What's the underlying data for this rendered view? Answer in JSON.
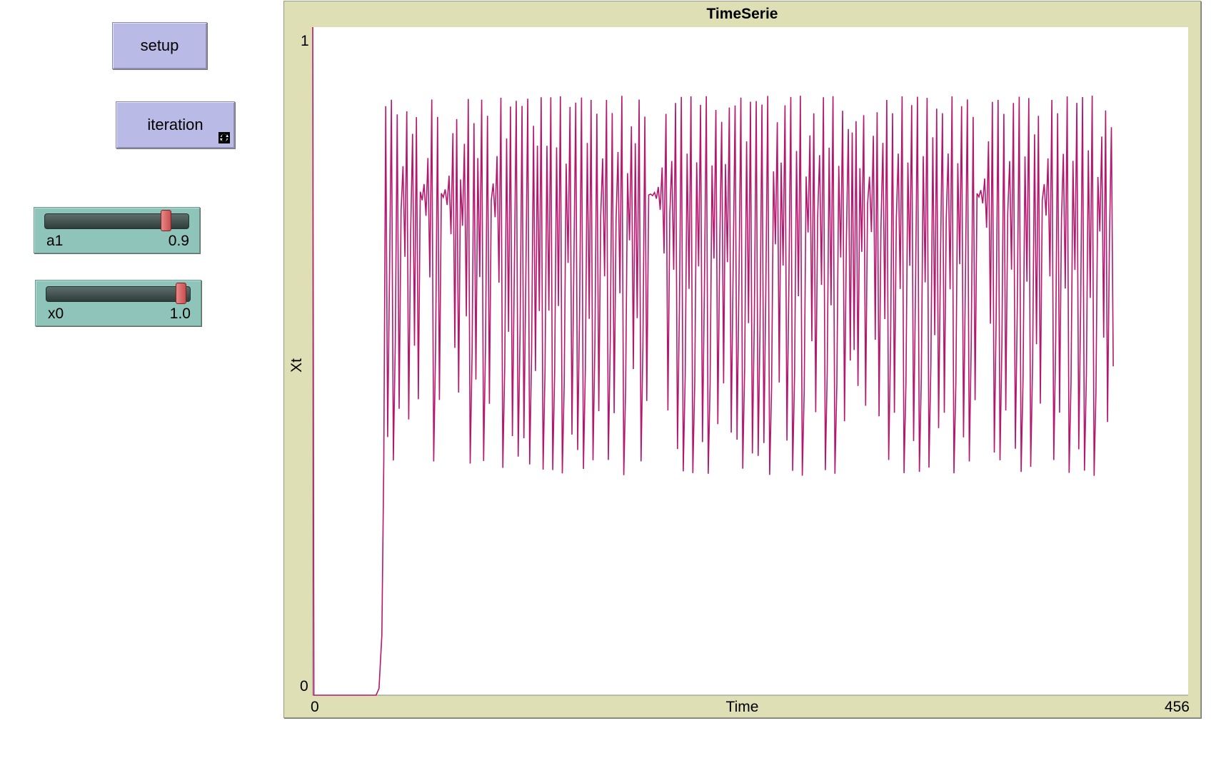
{
  "buttons": {
    "setup_label": "setup",
    "iteration_label": "iteration",
    "iteration_icon": "forever-icon"
  },
  "sliders": [
    {
      "name": "a1",
      "value": 0.9,
      "value_label": "0.9",
      "min": 0,
      "max": 1
    },
    {
      "name": "x0",
      "value": 1.0,
      "value_label": "1.0",
      "min": 0,
      "max": 1
    }
  ],
  "plot": {
    "title": "TimeSerie",
    "xlabel": "Time",
    "ylabel": "Xt",
    "xmin_label": "0",
    "xmax_label": "456",
    "ymin_label": "0",
    "ymax_label": "1",
    "pen_color": "#b5176e",
    "background": "#dfdfb6"
  },
  "chart_data": {
    "type": "line",
    "title": "TimeSerie",
    "xlabel": "Time",
    "ylabel": "Xt",
    "xlim": [
      0,
      456
    ],
    "ylim": [
      0,
      1
    ],
    "series": [
      {
        "color": "#b5176e",
        "initial_x": 0,
        "initial_y": 1.0,
        "flat_until_x": 33,
        "chaotic_start_x": 38,
        "chaotic_end_x": 456,
        "y_range": [
          0.28,
          0.91
        ]
      }
    ]
  }
}
